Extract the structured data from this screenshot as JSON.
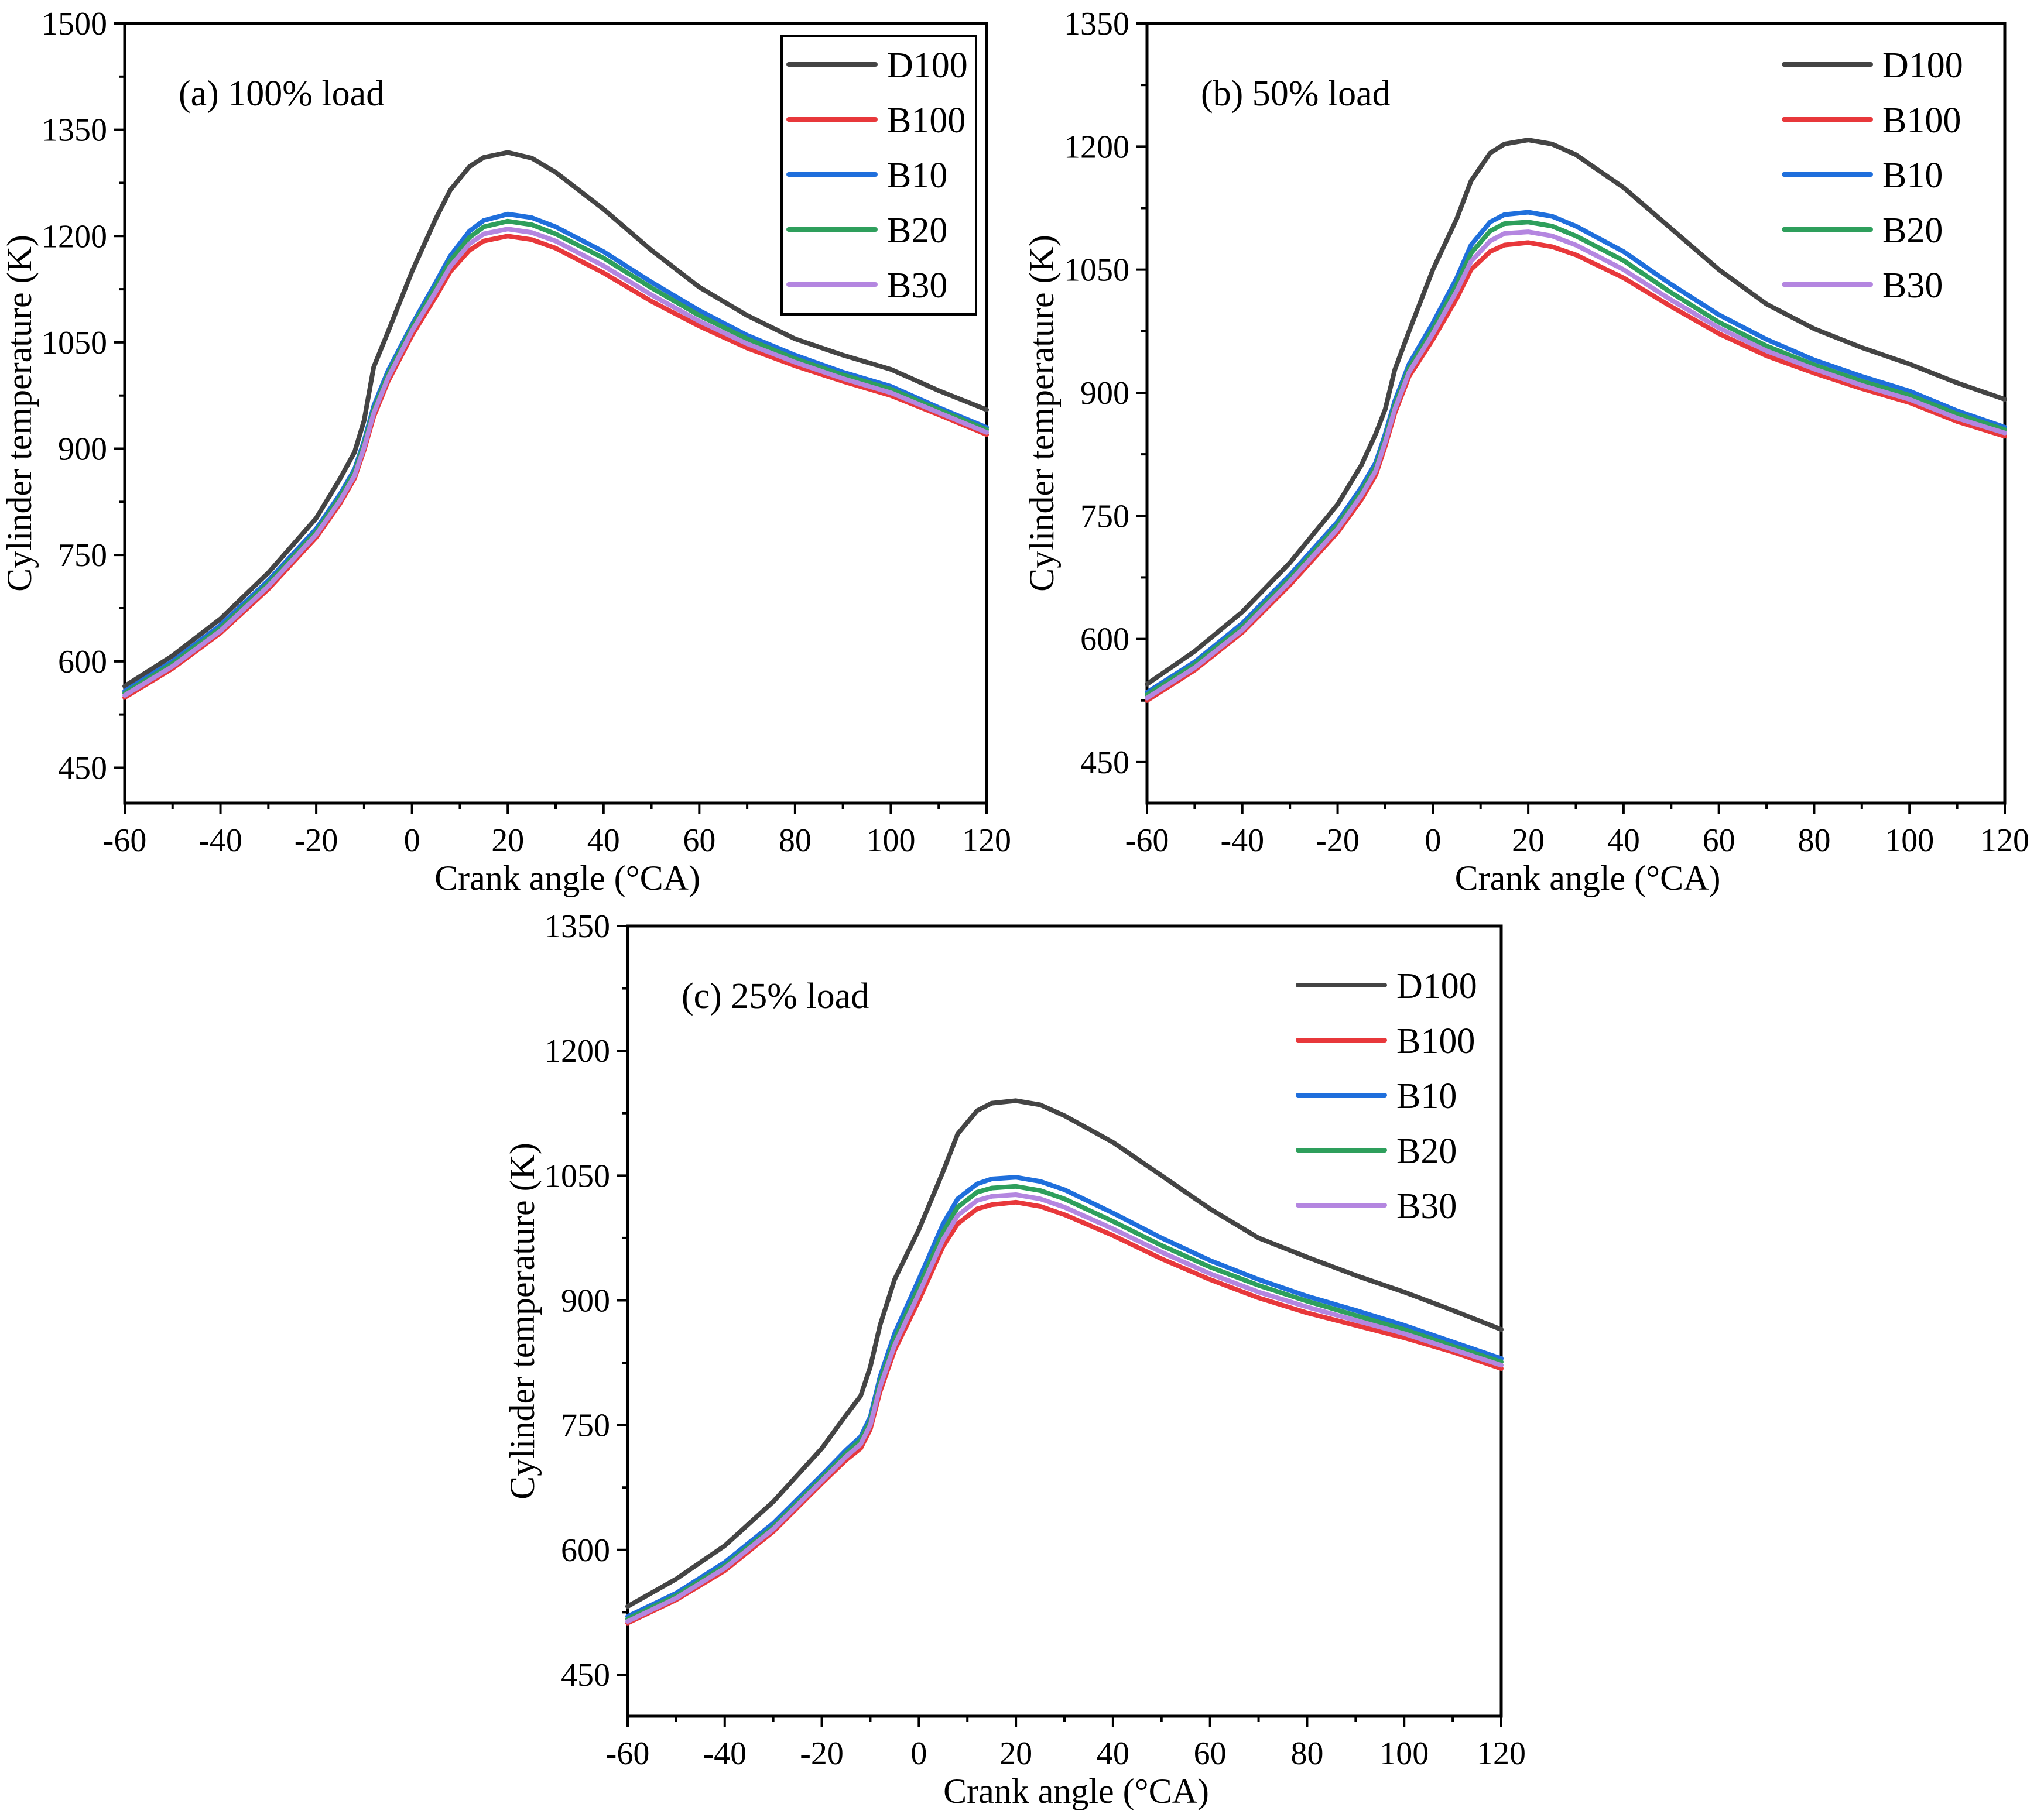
{
  "colors": {
    "D100": "#444444",
    "B100": "#e8383b",
    "B10": "#1f6fdc",
    "B20": "#2e9f5c",
    "B30": "#b486e0"
  },
  "chart_data": [
    {
      "type": "line",
      "title": "(a) 100% load",
      "xlabel": "Crank angle (°CA)",
      "ylabel": "Cylinder temperature (K)",
      "xlim": [
        -60,
        120
      ],
      "ylim": [
        400,
        1500
      ],
      "xticks": [
        -60,
        -40,
        -20,
        0,
        20,
        40,
        60,
        80,
        100,
        120
      ],
      "yticks": [
        450,
        600,
        750,
        900,
        1050,
        1200,
        1350,
        1500
      ],
      "legend_position": "top-right",
      "legend_frame": true,
      "series": [
        {
          "name": "D100",
          "x": [
            -60,
            -50,
            -40,
            -30,
            -20,
            -15,
            -12,
            -10,
            -8,
            -5,
            0,
            5,
            8,
            12,
            15,
            20,
            25,
            30,
            40,
            50,
            60,
            70,
            80,
            90,
            100,
            110,
            120
          ],
          "y": [
            565,
            608,
            660,
            725,
            802,
            858,
            895,
            940,
            1015,
            1065,
            1150,
            1225,
            1265,
            1298,
            1311,
            1318,
            1310,
            1290,
            1238,
            1180,
            1128,
            1088,
            1055,
            1032,
            1012,
            982,
            955
          ]
        },
        {
          "name": "B100",
          "x": [
            -60,
            -50,
            -40,
            -30,
            -20,
            -15,
            -12,
            -10,
            -8,
            -5,
            0,
            5,
            8,
            12,
            15,
            20,
            25,
            30,
            40,
            50,
            60,
            70,
            80,
            90,
            100,
            110,
            120
          ],
          "y": [
            549,
            590,
            640,
            702,
            775,
            823,
            858,
            898,
            945,
            995,
            1060,
            1115,
            1150,
            1180,
            1193,
            1200,
            1195,
            1183,
            1148,
            1108,
            1073,
            1042,
            1017,
            995,
            975,
            948,
            920
          ]
        },
        {
          "name": "B10",
          "x": [
            -60,
            -50,
            -40,
            -30,
            -20,
            -15,
            -12,
            -10,
            -8,
            -5,
            0,
            5,
            8,
            12,
            15,
            20,
            25,
            30,
            40,
            50,
            60,
            70,
            80,
            90,
            100,
            110,
            120
          ],
          "y": [
            558,
            600,
            651,
            714,
            787,
            836,
            871,
            911,
            960,
            1010,
            1075,
            1135,
            1172,
            1207,
            1222,
            1231,
            1226,
            1213,
            1178,
            1135,
            1095,
            1060,
            1032,
            1008,
            988,
            958,
            930
          ]
        },
        {
          "name": "B20",
          "x": [
            -60,
            -50,
            -40,
            -30,
            -20,
            -15,
            -12,
            -10,
            -8,
            -5,
            0,
            5,
            8,
            12,
            15,
            20,
            25,
            30,
            40,
            50,
            60,
            70,
            80,
            90,
            100,
            110,
            120
          ],
          "y": [
            555,
            597,
            647,
            710,
            783,
            832,
            867,
            907,
            955,
            1005,
            1071,
            1129,
            1165,
            1198,
            1213,
            1221,
            1216,
            1203,
            1169,
            1127,
            1088,
            1055,
            1027,
            1004,
            984,
            955,
            927
          ]
        },
        {
          "name": "B30",
          "x": [
            -60,
            -50,
            -40,
            -30,
            -20,
            -15,
            -12,
            -10,
            -8,
            -5,
            0,
            5,
            8,
            12,
            15,
            20,
            25,
            30,
            40,
            50,
            60,
            70,
            80,
            90,
            100,
            110,
            120
          ],
          "y": [
            552,
            593,
            643,
            706,
            779,
            827,
            862,
            902,
            950,
            1000,
            1066,
            1122,
            1157,
            1189,
            1203,
            1210,
            1205,
            1193,
            1158,
            1117,
            1080,
            1048,
            1022,
            999,
            979,
            951,
            923
          ]
        }
      ]
    },
    {
      "type": "line",
      "title": "(b) 50% load",
      "xlabel": "Crank angle (°CA)",
      "ylabel": "Cylinder temperature (K)",
      "xlim": [
        -60,
        120
      ],
      "ylim": [
        400,
        1350
      ],
      "xticks": [
        -60,
        -40,
        -20,
        0,
        20,
        40,
        60,
        80,
        100,
        120
      ],
      "yticks": [
        450,
        600,
        750,
        900,
        1050,
        1200,
        1350
      ],
      "legend_position": "top-right",
      "legend_frame": false,
      "series": [
        {
          "name": "D100",
          "x": [
            -60,
            -50,
            -40,
            -30,
            -20,
            -15,
            -12,
            -10,
            -8,
            -5,
            0,
            5,
            8,
            12,
            15,
            20,
            25,
            30,
            40,
            50,
            60,
            70,
            80,
            90,
            100,
            110,
            120
          ],
          "y": [
            545,
            585,
            633,
            693,
            764,
            812,
            850,
            880,
            928,
            975,
            1050,
            1112,
            1158,
            1192,
            1203,
            1208,
            1203,
            1190,
            1150,
            1100,
            1050,
            1008,
            978,
            955,
            935,
            912,
            892
          ]
        },
        {
          "name": "B100",
          "x": [
            -60,
            -50,
            -40,
            -30,
            -20,
            -15,
            -12,
            -10,
            -8,
            -5,
            0,
            5,
            8,
            12,
            15,
            20,
            25,
            30,
            40,
            50,
            60,
            70,
            80,
            90,
            100,
            110,
            120
          ],
          "y": [
            525,
            562,
            608,
            666,
            730,
            770,
            800,
            835,
            875,
            920,
            965,
            1015,
            1050,
            1072,
            1080,
            1083,
            1078,
            1068,
            1040,
            1005,
            972,
            945,
            924,
            905,
            888,
            865,
            847
          ]
        },
        {
          "name": "B10",
          "x": [
            -60,
            -50,
            -40,
            -30,
            -20,
            -15,
            -12,
            -10,
            -8,
            -5,
            0,
            5,
            8,
            12,
            15,
            20,
            25,
            30,
            40,
            50,
            60,
            70,
            80,
            90,
            100,
            110,
            120
          ],
          "y": [
            535,
            572,
            619,
            678,
            743,
            785,
            815,
            850,
            890,
            935,
            985,
            1040,
            1080,
            1108,
            1117,
            1120,
            1115,
            1103,
            1072,
            1032,
            995,
            965,
            940,
            920,
            902,
            878,
            858
          ]
        },
        {
          "name": "B20",
          "x": [
            -60,
            -50,
            -40,
            -30,
            -20,
            -15,
            -12,
            -10,
            -8,
            -5,
            0,
            5,
            8,
            12,
            15,
            20,
            25,
            30,
            40,
            50,
            60,
            70,
            80,
            90,
            100,
            110,
            120
          ],
          "y": [
            532,
            569,
            615,
            674,
            739,
            780,
            810,
            845,
            885,
            930,
            978,
            1032,
            1070,
            1097,
            1106,
            1108,
            1103,
            1091,
            1061,
            1022,
            986,
            957,
            934,
            914,
            897,
            874,
            855
          ]
        },
        {
          "name": "B30",
          "x": [
            -60,
            -50,
            -40,
            -30,
            -20,
            -15,
            -12,
            -10,
            -8,
            -5,
            0,
            5,
            8,
            12,
            15,
            20,
            25,
            30,
            40,
            50,
            60,
            70,
            80,
            90,
            100,
            110,
            120
          ],
          "y": [
            528,
            565,
            611,
            670,
            734,
            775,
            805,
            840,
            880,
            925,
            972,
            1024,
            1060,
            1085,
            1094,
            1096,
            1091,
            1080,
            1050,
            1013,
            979,
            951,
            929,
            909,
            892,
            869,
            851
          ]
        }
      ]
    },
    {
      "type": "line",
      "title": "(c) 25% load",
      "xlabel": "Crank angle (°CA)",
      "ylabel": "Cylinder temperature (K)",
      "xlim": [
        -60,
        120
      ],
      "ylim": [
        400,
        1350
      ],
      "xticks": [
        -60,
        -40,
        -20,
        0,
        20,
        40,
        60,
        80,
        100,
        120
      ],
      "yticks": [
        450,
        600,
        750,
        900,
        1050,
        1200,
        1350
      ],
      "legend_position": "top-right",
      "legend_frame": false,
      "series": [
        {
          "name": "D100",
          "x": [
            -60,
            -50,
            -40,
            -30,
            -20,
            -15,
            -12,
            -10,
            -8,
            -5,
            0,
            5,
            8,
            12,
            15,
            20,
            25,
            30,
            40,
            50,
            60,
            70,
            80,
            90,
            100,
            110,
            120
          ],
          "y": [
            532,
            565,
            605,
            658,
            722,
            762,
            785,
            820,
            870,
            925,
            985,
            1055,
            1100,
            1128,
            1137,
            1140,
            1135,
            1122,
            1090,
            1050,
            1010,
            975,
            952,
            930,
            910,
            888,
            865
          ]
        },
        {
          "name": "B100",
          "x": [
            -60,
            -50,
            -40,
            -30,
            -20,
            -15,
            -12,
            -10,
            -8,
            -5,
            0,
            5,
            8,
            12,
            15,
            20,
            25,
            30,
            40,
            50,
            60,
            70,
            80,
            90,
            100,
            110,
            120
          ],
          "y": [
            512,
            540,
            575,
            622,
            680,
            708,
            722,
            745,
            790,
            840,
            900,
            965,
            992,
            1010,
            1015,
            1018,
            1013,
            1003,
            978,
            950,
            925,
            903,
            885,
            870,
            855,
            838,
            818
          ]
        },
        {
          "name": "B10",
          "x": [
            -60,
            -50,
            -40,
            -30,
            -20,
            -15,
            -12,
            -10,
            -8,
            -5,
            0,
            5,
            8,
            12,
            15,
            20,
            25,
            30,
            40,
            50,
            60,
            70,
            80,
            90,
            100,
            110,
            120
          ],
          "y": [
            520,
            548,
            585,
            632,
            690,
            720,
            736,
            760,
            808,
            860,
            925,
            992,
            1022,
            1040,
            1046,
            1048,
            1043,
            1033,
            1005,
            975,
            948,
            925,
            905,
            888,
            870,
            850,
            830
          ]
        },
        {
          "name": "B20",
          "x": [
            -60,
            -50,
            -40,
            -30,
            -20,
            -15,
            -12,
            -10,
            -8,
            -5,
            0,
            5,
            8,
            12,
            15,
            20,
            25,
            30,
            40,
            50,
            60,
            70,
            80,
            90,
            100,
            110,
            120
          ],
          "y": [
            517,
            545,
            581,
            628,
            686,
            716,
            732,
            755,
            802,
            853,
            916,
            982,
            1012,
            1030,
            1035,
            1037,
            1032,
            1022,
            995,
            966,
            940,
            918,
            899,
            882,
            865,
            845,
            826
          ]
        },
        {
          "name": "B30",
          "x": [
            -60,
            -50,
            -40,
            -30,
            -20,
            -15,
            -12,
            -10,
            -8,
            -5,
            0,
            5,
            8,
            12,
            15,
            20,
            25,
            30,
            40,
            50,
            60,
            70,
            80,
            90,
            100,
            110,
            120
          ],
          "y": [
            514,
            542,
            578,
            625,
            683,
            712,
            727,
            750,
            796,
            846,
            908,
            973,
            1002,
            1020,
            1025,
            1027,
            1022,
            1012,
            986,
            958,
            932,
            910,
            892,
            876,
            860,
            841,
            822
          ]
        }
      ]
    }
  ]
}
